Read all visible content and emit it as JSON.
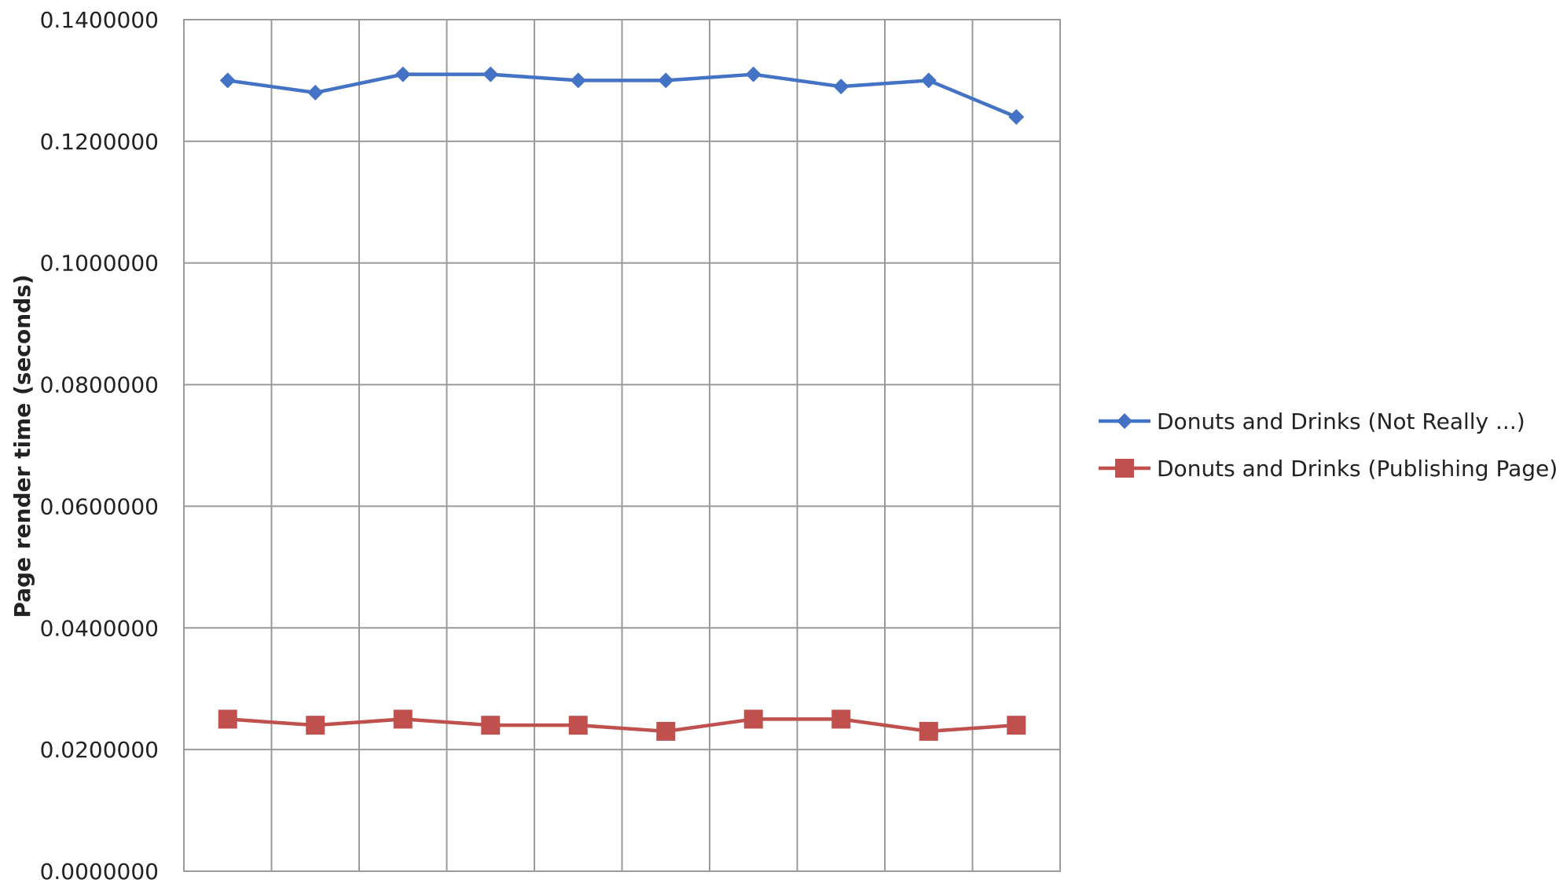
{
  "chart_data": {
    "type": "line",
    "title": "",
    "xlabel": "",
    "ylabel": "Page render time (seconds)",
    "ylim": [
      0,
      0.14
    ],
    "yticks": [
      "0.0000000",
      "0.0200000",
      "0.0400000",
      "0.0600000",
      "0.0800000",
      "0.1000000",
      "0.1200000",
      "0.1400000"
    ],
    "x": [
      1,
      2,
      3,
      4,
      5,
      6,
      7,
      8,
      9,
      10
    ],
    "grid": true,
    "legend_position": "right",
    "series": [
      {
        "name": "Donuts and Drinks (Not Really ...)",
        "color": "#4472c4",
        "marker": "diamond",
        "values": [
          0.13,
          0.128,
          0.131,
          0.131,
          0.13,
          0.13,
          0.131,
          0.129,
          0.13,
          0.124
        ]
      },
      {
        "name": "Donuts and Drinks (Publishing Page)",
        "color": "#c0504d",
        "marker": "square",
        "values": [
          0.025,
          0.024,
          0.025,
          0.024,
          0.024,
          0.023,
          0.025,
          0.025,
          0.023,
          0.024
        ]
      }
    ]
  }
}
